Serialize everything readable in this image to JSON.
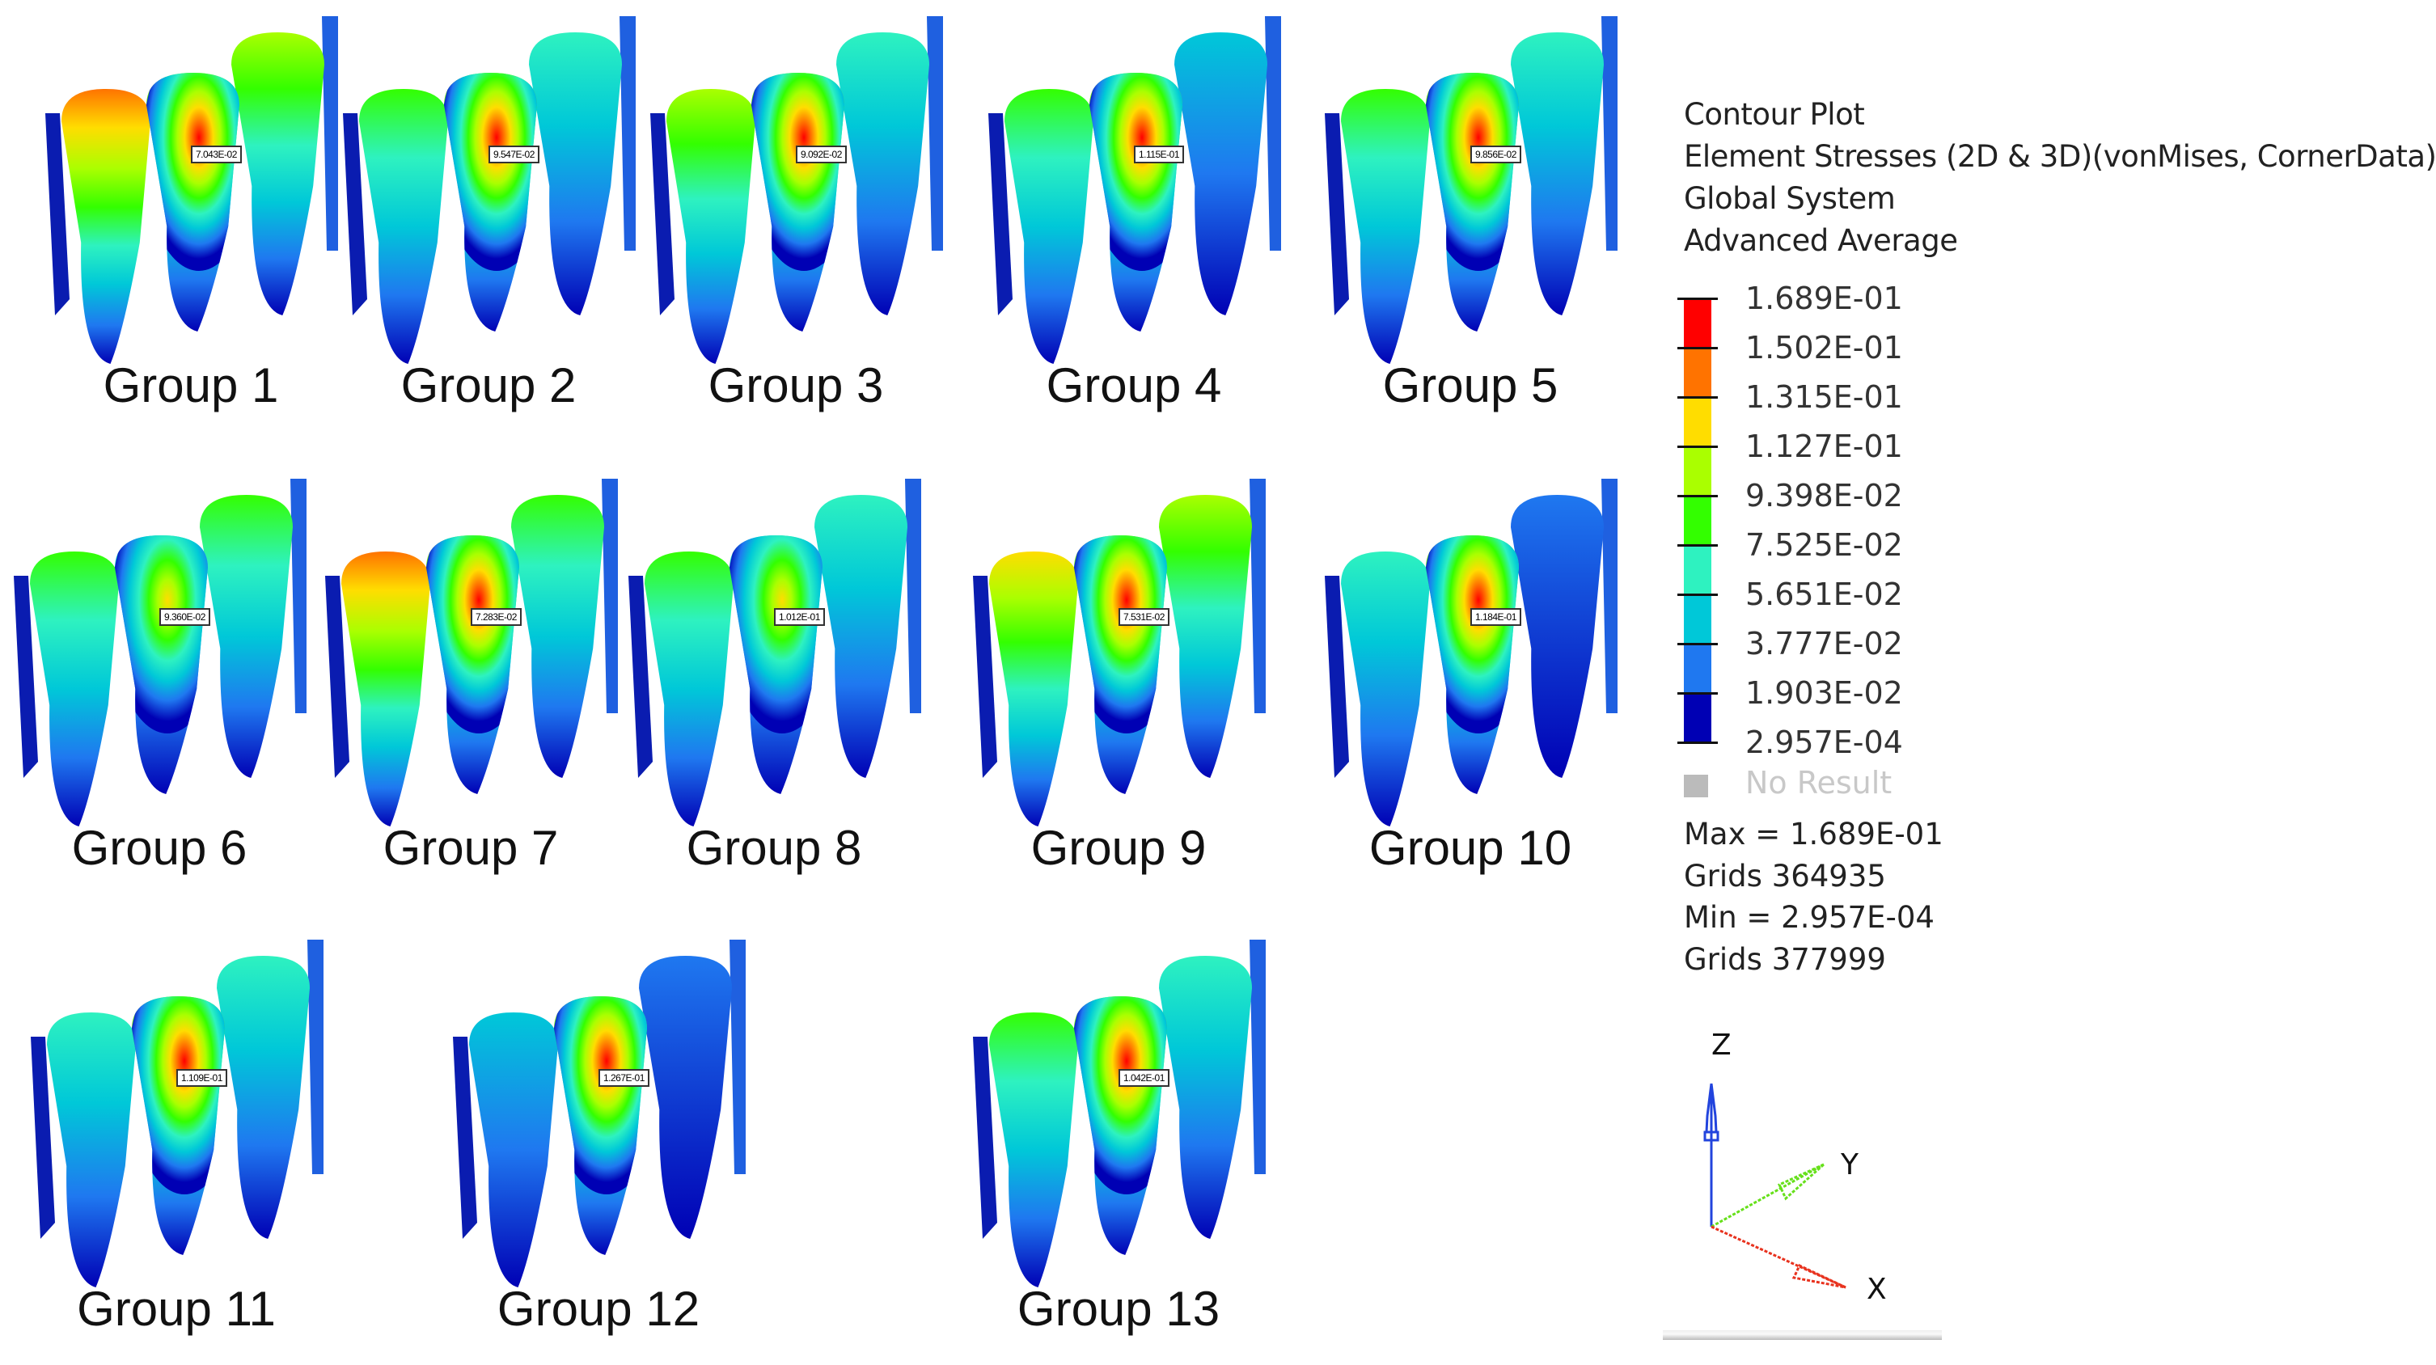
{
  "groups": [
    {
      "name": "Group 1",
      "value": "7.043E-02",
      "crowns": [
        "#ff7300",
        "#ff0000",
        "#aaff00"
      ]
    },
    {
      "name": "Group 2",
      "value": "9.547E-02",
      "crowns": [
        "#33ff00",
        "#ff0000",
        "#2ef2c0"
      ]
    },
    {
      "name": "Group 3",
      "value": "9.092E-02",
      "crowns": [
        "#aaff00",
        "#ff0000",
        "#2ef2c0"
      ]
    },
    {
      "name": "Group 4",
      "value": "1.115E-01",
      "crowns": [
        "#33ff00",
        "#ff0000",
        "#00c8d8"
      ]
    },
    {
      "name": "Group 5",
      "value": "9.856E-02",
      "crowns": [
        "#33ff00",
        "#ff0000",
        "#2ef2c0"
      ]
    },
    {
      "name": "Group 6",
      "value": "9.360E-02",
      "crowns": [
        "#33ff00",
        "#ffdd00",
        "#33ff00"
      ]
    },
    {
      "name": "Group 7",
      "value": "7.283E-02",
      "crowns": [
        "#ff7300",
        "#ff0000",
        "#33ff00"
      ]
    },
    {
      "name": "Group 8",
      "value": "1.012E-01",
      "crowns": [
        "#33ff00",
        "#ffdd00",
        "#2ef2c0"
      ]
    },
    {
      "name": "Group 9",
      "value": "7.531E-02",
      "crowns": [
        "#ffdd00",
        "#ff0000",
        "#aaff00"
      ]
    },
    {
      "name": "Group 10",
      "value": "1.184E-01",
      "crowns": [
        "#2ef2c0",
        "#ff0000",
        "#1f78f0"
      ]
    },
    {
      "name": "Group 11",
      "value": "1.109E-01",
      "crowns": [
        "#2ef2c0",
        "#ff0000",
        "#2ef2c0"
      ]
    },
    {
      "name": "Group 12",
      "value": "1.267E-01",
      "crowns": [
        "#00c8d8",
        "#ff0000",
        "#1f78f0"
      ]
    },
    {
      "name": "Group 13",
      "value": "1.042E-01",
      "crowns": [
        "#33ff00",
        "#ff0000",
        "#2ef2c0"
      ]
    }
  ],
  "legend": {
    "title_lines": [
      "Contour Plot",
      "Element Stresses (2D & 3D)(vonMises, CornerData)",
      "Global System",
      "Advanced Average"
    ],
    "levels": [
      "1.689E-01",
      "1.502E-01",
      "1.315E-01",
      "1.127E-01",
      "9.398E-02",
      "7.525E-02",
      "5.651E-02",
      "3.777E-02",
      "1.903E-02",
      "2.957E-04"
    ],
    "band_colors": [
      "#ff0000",
      "#ff7300",
      "#ffdd00",
      "#aaff00",
      "#33ff00",
      "#2ef2c0",
      "#00c8d8",
      "#1f78f0",
      "#0000b4"
    ],
    "no_result": "No Result",
    "no_result_color": "#bbbbbb",
    "max_line": "Max =  1.689E-01",
    "max_grids": "Grids 364935",
    "min_line": "Min =  2.957E-04",
    "min_grids": "Grids 377999"
  },
  "axes": {
    "x": "X",
    "y": "Y",
    "z": "Z",
    "colors": {
      "x": "#e8321e",
      "y": "#66e01a",
      "z": "#2244dd"
    }
  }
}
